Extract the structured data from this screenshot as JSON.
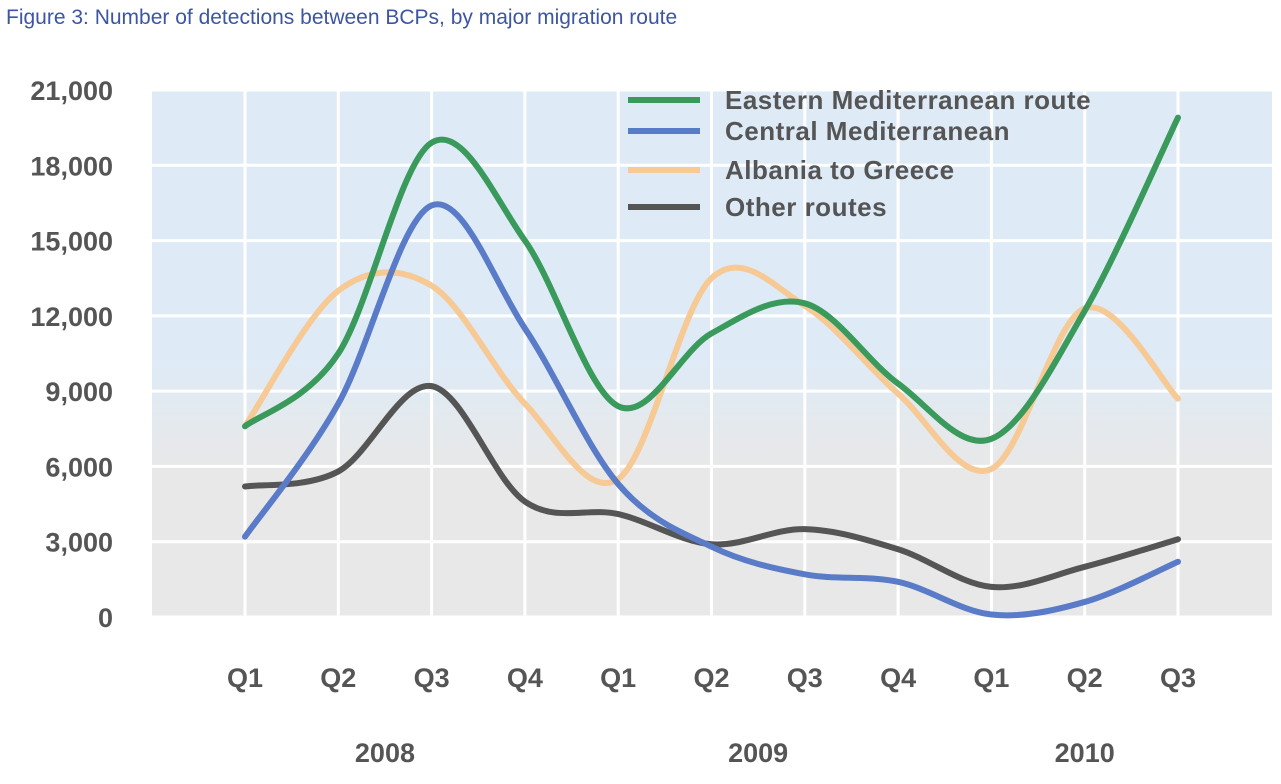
{
  "chart_data": {
    "type": "line",
    "title": "Figure 3: Number of detections between BCPs, by major migration route",
    "xlabel": "",
    "ylabel": "",
    "ylim": [
      0,
      21000
    ],
    "yticks": [
      "0",
      "3,000",
      "6,000",
      "9,000",
      "12,000",
      "15,000",
      "18,000",
      "21,000"
    ],
    "categories": [
      "Q1",
      "Q2",
      "Q3",
      "Q4",
      "Q1",
      "Q2",
      "Q3",
      "Q4",
      "Q1",
      "Q2",
      "Q3"
    ],
    "years": [
      {
        "label": "2008",
        "start": 0,
        "end": 3
      },
      {
        "label": "2009",
        "start": 4,
        "end": 7
      },
      {
        "label": "2010",
        "start": 8,
        "end": 10
      }
    ],
    "grid": true,
    "smooth": true,
    "legend_position": "top-right",
    "background": {
      "top": "#deebf7",
      "bottom": "#e8e8e8"
    },
    "series": [
      {
        "name": "Eastern Mediterranean route",
        "color": "#3a9a5c",
        "values": [
          7600,
          10500,
          18900,
          15000,
          8400,
          11300,
          12500,
          9300,
          7100,
          12200,
          19900
        ]
      },
      {
        "name": "Central Mediterranean",
        "color": "#5a7cc8",
        "values": [
          3200,
          8500,
          16400,
          11500,
          5300,
          2800,
          1700,
          1400,
          100,
          600,
          2200
        ]
      },
      {
        "name": "Albania to Greece",
        "color": "#f6c995",
        "values": [
          7600,
          13000,
          13200,
          8500,
          5500,
          13500,
          12400,
          8900,
          5900,
          12300,
          8700
        ]
      },
      {
        "name": "Other routes",
        "color": "#555555",
        "values": [
          5200,
          5800,
          9200,
          4600,
          4100,
          2900,
          3500,
          2700,
          1200,
          2000,
          3100
        ]
      }
    ]
  }
}
